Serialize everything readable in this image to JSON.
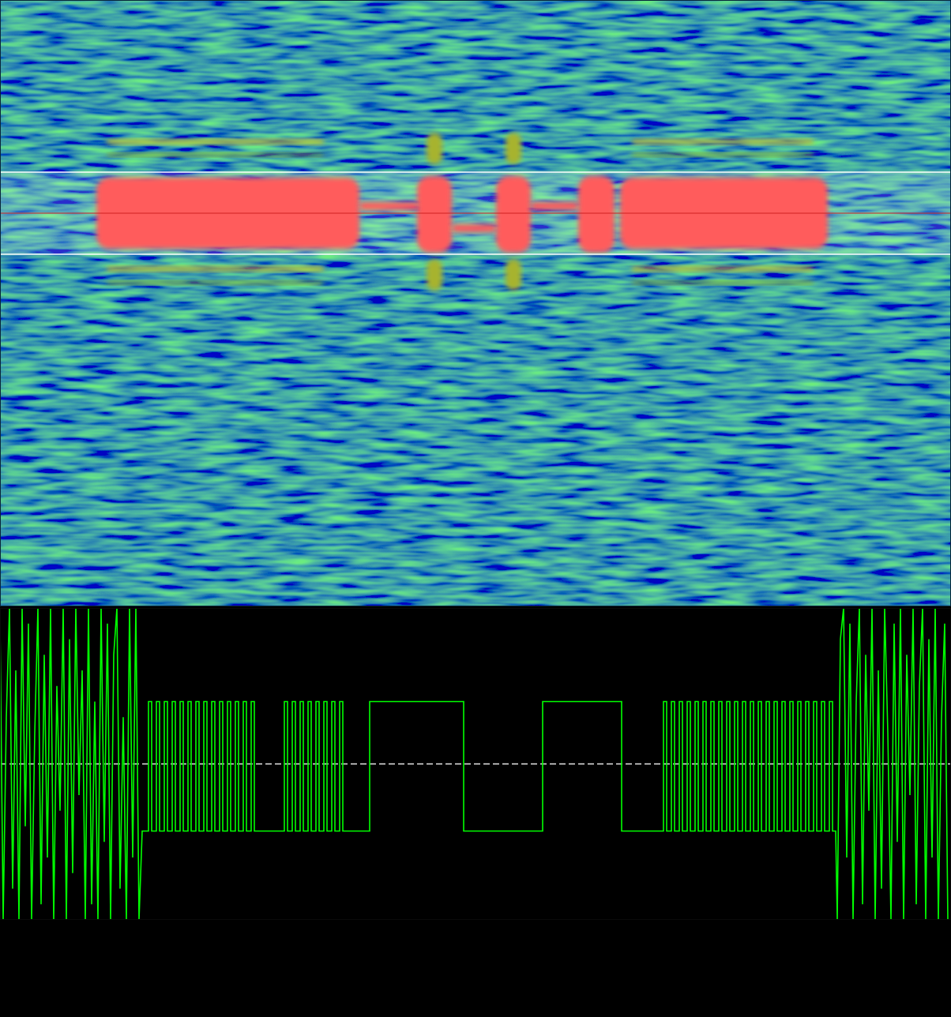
{
  "chart_data": [
    {
      "type": "spectrogram",
      "tick_labels": false,
      "xlim": [
        0,
        1204
      ],
      "ylim": [
        0,
        768
      ],
      "zlim": [
        0,
        1
      ],
      "passband": [
        446,
        550
      ],
      "center": 498,
      "bursts": [
        {
          "x0": 122,
          "x1": 455,
          "y0": 453,
          "y1": 543,
          "level": 1
        },
        {
          "x0": 528,
          "x1": 572,
          "y0": 448,
          "y1": 545,
          "level": 1
        },
        {
          "x0": 628,
          "x1": 672,
          "y0": 448,
          "y1": 545,
          "level": 1
        },
        {
          "x0": 732,
          "x1": 778,
          "y0": 448,
          "y1": 545,
          "level": 1
        },
        {
          "x0": 785,
          "x1": 1048,
          "y0": 453,
          "y1": 543,
          "level": 1
        },
        {
          "x0": 455,
          "x1": 530,
          "y0": 502,
          "y1": 512,
          "level": 1
        },
        {
          "x0": 572,
          "x1": 628,
          "y0": 474,
          "y1": 484,
          "level": 1
        },
        {
          "x0": 672,
          "x1": 732,
          "y0": 502,
          "y1": 512,
          "level": 1
        },
        {
          "x0": 135,
          "x1": 410,
          "y0": 586,
          "y1": 591,
          "level": 0.7
        },
        {
          "x0": 135,
          "x1": 410,
          "y0": 570,
          "y1": 574,
          "level": 0.6
        },
        {
          "x0": 135,
          "x1": 410,
          "y0": 425,
          "y1": 430,
          "level": 0.7
        },
        {
          "x0": 135,
          "x1": 410,
          "y0": 408,
          "y1": 412,
          "level": 0.6
        },
        {
          "x0": 800,
          "x1": 1030,
          "y0": 586,
          "y1": 591,
          "level": 0.7
        },
        {
          "x0": 800,
          "x1": 1030,
          "y0": 570,
          "y1": 574,
          "level": 0.6
        },
        {
          "x0": 800,
          "x1": 1030,
          "y0": 425,
          "y1": 430,
          "level": 0.7
        },
        {
          "x0": 800,
          "x1": 1030,
          "y0": 408,
          "y1": 412,
          "level": 0.6
        },
        {
          "x0": 540,
          "x1": 560,
          "y0": 560,
          "y1": 600,
          "level": 0.65
        },
        {
          "x0": 640,
          "x1": 660,
          "y0": 560,
          "y1": 600,
          "level": 0.65
        },
        {
          "x0": 540,
          "x1": 560,
          "y0": 400,
          "y1": 440,
          "level": 0.65
        },
        {
          "x0": 640,
          "x1": 660,
          "y0": 400,
          "y1": 440,
          "level": 0.65
        }
      ]
    },
    {
      "type": "line",
      "tick_labels": false,
      "grid": true,
      "color": "#00ff00",
      "xlim": [
        0,
        1204
      ],
      "ylim": [
        -1,
        1
      ],
      "yticks": [
        0
      ],
      "x": [
        0,
        4,
        8,
        12,
        16,
        20,
        24,
        28,
        32,
        36,
        40,
        44,
        48,
        52,
        56,
        60,
        64,
        68,
        72,
        76,
        80,
        84,
        88,
        92,
        96,
        100,
        104,
        108,
        112,
        116,
        120,
        124,
        128,
        132,
        136,
        140,
        144,
        148,
        152,
        156,
        160,
        164,
        168,
        172,
        176,
        180,
        188,
        188,
        192,
        192,
        198,
        198,
        202,
        202,
        208,
        208,
        212,
        212,
        218,
        218,
        222,
        222,
        228,
        228,
        232,
        232,
        238,
        238,
        242,
        242,
        248,
        248,
        252,
        252,
        258,
        258,
        262,
        262,
        268,
        268,
        272,
        272,
        278,
        278,
        282,
        282,
        288,
        288,
        292,
        292,
        298,
        298,
        302,
        302,
        308,
        308,
        312,
        312,
        318,
        318,
        322,
        322,
        360,
        360,
        364,
        364,
        370,
        370,
        374,
        374,
        380,
        380,
        384,
        384,
        390,
        390,
        394,
        394,
        400,
        400,
        404,
        404,
        410,
        410,
        414,
        414,
        420,
        420,
        424,
        424,
        430,
        430,
        434,
        434,
        468,
        468,
        587,
        587,
        687,
        687,
        787,
        787,
        840,
        840,
        844,
        844,
        850,
        850,
        854,
        854,
        860,
        860,
        864,
        864,
        870,
        870,
        874,
        874,
        880,
        880,
        884,
        884,
        890,
        890,
        894,
        894,
        900,
        900,
        904,
        904,
        910,
        910,
        914,
        914,
        920,
        920,
        924,
        924,
        930,
        930,
        934,
        934,
        940,
        940,
        944,
        944,
        950,
        950,
        954,
        954,
        960,
        960,
        964,
        964,
        970,
        970,
        974,
        974,
        980,
        980,
        984,
        984,
        990,
        990,
        994,
        994,
        1000,
        1000,
        1004,
        1004,
        1010,
        1010,
        1014,
        1014,
        1020,
        1020,
        1024,
        1024,
        1030,
        1030,
        1034,
        1034,
        1040,
        1040,
        1044,
        1044,
        1050,
        1050,
        1054,
        1054,
        1058,
        1060,
        1064,
        1068,
        1072,
        1076,
        1080,
        1084,
        1088,
        1092,
        1096,
        1100,
        1104,
        1108,
        1112,
        1116,
        1120,
        1124,
        1128,
        1132,
        1136,
        1140,
        1144,
        1148,
        1152,
        1156,
        1160,
        1164,
        1168,
        1172,
        1176,
        1180,
        1184,
        1188,
        1192,
        1196,
        1200
      ],
      "values": [
        0.9,
        -1,
        0.3,
        1,
        -0.8,
        0.6,
        -1,
        1,
        -0.4,
        0.9,
        -1,
        0.2,
        1,
        -0.9,
        0.7,
        -0.6,
        1,
        -1,
        0.5,
        -0.3,
        1,
        -1,
        0.8,
        -0.7,
        1,
        -0.2,
        0.6,
        -1,
        1,
        -0.9,
        0.4,
        -1,
        1,
        -0.5,
        0.9,
        -1,
        0.7,
        1,
        -0.8,
        0.3,
        -1,
        1,
        -0.6,
        1,
        -1,
        -0.43,
        -0.43,
        0.4,
        0.4,
        -0.43,
        -0.43,
        0.4,
        0.4,
        -0.43,
        -0.43,
        0.4,
        0.4,
        -0.43,
        -0.43,
        0.4,
        0.4,
        -0.43,
        -0.43,
        0.4,
        0.4,
        -0.43,
        -0.43,
        0.4,
        0.4,
        -0.43,
        -0.43,
        0.4,
        0.4,
        -0.43,
        -0.43,
        0.4,
        0.4,
        -0.43,
        -0.43,
        0.4,
        0.4,
        -0.43,
        -0.43,
        0.4,
        0.4,
        -0.43,
        -0.43,
        0.4,
        0.4,
        -0.43,
        -0.43,
        0.4,
        0.4,
        -0.43,
        -0.43,
        0.4,
        0.4,
        -0.43,
        -0.43,
        0.4,
        0.4,
        -0.43,
        -0.43,
        0.4,
        0.4,
        -0.43,
        -0.43,
        0.4,
        0.4,
        -0.43,
        -0.43,
        0.4,
        0.4,
        -0.43,
        -0.43,
        0.4,
        0.4,
        -0.43,
        -0.43,
        0.4,
        0.4,
        -0.43,
        -0.43,
        0.4,
        0.4,
        -0.43,
        -0.43,
        0.4,
        0.4,
        -0.43,
        -0.43,
        0.4,
        0.4,
        -0.43,
        -0.43,
        0.4,
        0.4,
        -0.43,
        -0.43,
        0.4,
        0.4,
        -0.43,
        -0.43,
        0.4,
        0.4,
        -0.43,
        -0.43,
        0.4,
        0.4,
        -0.43,
        -0.43,
        0.4,
        0.4,
        -0.43,
        -0.43,
        0.4,
        0.4,
        -0.43,
        -0.43,
        0.4,
        0.4,
        -0.43,
        -0.43,
        0.4,
        0.4,
        -0.43,
        -0.43,
        0.4,
        0.4,
        -0.43,
        -0.43,
        0.4,
        0.4,
        -0.43,
        -0.43,
        0.4,
        0.4,
        -0.43,
        -0.43,
        0.4,
        0.4,
        -0.43,
        -0.43,
        0.4,
        0.4,
        -0.43,
        -0.43,
        0.4,
        0.4,
        -0.43,
        -0.43,
        0.4,
        0.4,
        -0.43,
        -0.43,
        0.4,
        0.4,
        -0.43,
        -0.43,
        0.4,
        0.4,
        -0.43,
        -0.43,
        0.4,
        0.4,
        -0.43,
        -0.43,
        0.4,
        0.4,
        -0.43,
        -0.43,
        0.4,
        0.4,
        -0.43,
        -0.43,
        0.4,
        0.4,
        -0.43,
        -0.43,
        0.4,
        0.4,
        -0.43,
        -0.43,
        0.4,
        0.4,
        -0.43,
        -0.43,
        0.4,
        0.4,
        -0.43,
        -0.43,
        -1,
        0.8,
        1,
        -0.6,
        0.9,
        -1,
        0.4,
        1,
        -0.9,
        0.7,
        -0.3,
        1,
        -1,
        0.6,
        -0.8,
        1,
        0.2,
        -1,
        0.9,
        -0.5,
        1,
        -1,
        0.7,
        -0.2,
        1,
        -0.9,
        0.5,
        1,
        -1,
        0.8,
        -0.6,
        1,
        -1,
        0.3,
        0.9,
        -1
      ]
    }
  ]
}
